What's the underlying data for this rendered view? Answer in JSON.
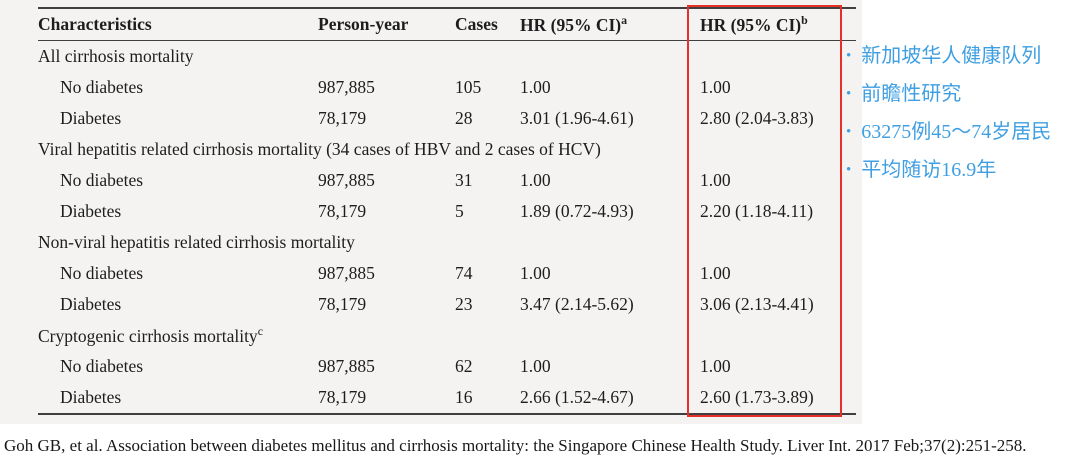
{
  "table": {
    "headers": [
      {
        "label": "Characteristics",
        "sup": ""
      },
      {
        "label": "Person-year",
        "sup": ""
      },
      {
        "label": "Cases",
        "sup": ""
      },
      {
        "label": "HR (95% CI)",
        "sup": "a"
      },
      {
        "label": "HR (95% CI)",
        "sup": "b"
      }
    ],
    "sections": [
      {
        "title": "All cirrhosis mortality",
        "sup": "",
        "rows": [
          {
            "label": "No diabetes",
            "person_year": "987,885",
            "cases": "105",
            "hr_a": "1.00",
            "hr_b": "1.00"
          },
          {
            "label": "Diabetes",
            "person_year": "78,179",
            "cases": "28",
            "hr_a": "3.01 (1.96-4.61)",
            "hr_b": "2.80 (2.04-3.83)"
          }
        ]
      },
      {
        "title": "Viral hepatitis related cirrhosis mortality (34 cases of HBV and 2 cases of HCV)",
        "sup": "",
        "rows": [
          {
            "label": "No diabetes",
            "person_year": "987,885",
            "cases": "31",
            "hr_a": "1.00",
            "hr_b": "1.00"
          },
          {
            "label": "Diabetes",
            "person_year": "78,179",
            "cases": "5",
            "hr_a": "1.89 (0.72-4.93)",
            "hr_b": "2.20 (1.18-4.11)"
          }
        ]
      },
      {
        "title": "Non-viral hepatitis related cirrhosis mortality",
        "sup": "",
        "rows": [
          {
            "label": "No diabetes",
            "person_year": "987,885",
            "cases": "74",
            "hr_a": "1.00",
            "hr_b": "1.00"
          },
          {
            "label": "Diabetes",
            "person_year": "78,179",
            "cases": "23",
            "hr_a": "3.47 (2.14-5.62)",
            "hr_b": "3.06 (2.13-4.41)"
          }
        ]
      },
      {
        "title": "Cryptogenic cirrhosis mortality",
        "sup": "c",
        "rows": [
          {
            "label": "No diabetes",
            "person_year": "987,885",
            "cases": "62",
            "hr_a": "1.00",
            "hr_b": "1.00"
          },
          {
            "label": "Diabetes",
            "person_year": "78,179",
            "cases": "16",
            "hr_a": "2.66 (1.52-4.67)",
            "hr_b": "2.60 (1.73-3.89)"
          }
        ]
      }
    ]
  },
  "annotations": {
    "items": [
      "新加坡华人健康队列",
      "前瞻性研究",
      "63275例45～74岁居民",
      "平均随访16.9年"
    ],
    "bullet": "•",
    "text_color": "#3f9fe2"
  },
  "highlight": {
    "color": "#e53127",
    "column": "HR (95% CI) b"
  },
  "citation": "Goh GB, et al. Association between diabetes mellitus and cirrhosis mortality: the Singapore Chinese Health Study. Liver Int. 2017 Feb;37(2):251-258."
}
